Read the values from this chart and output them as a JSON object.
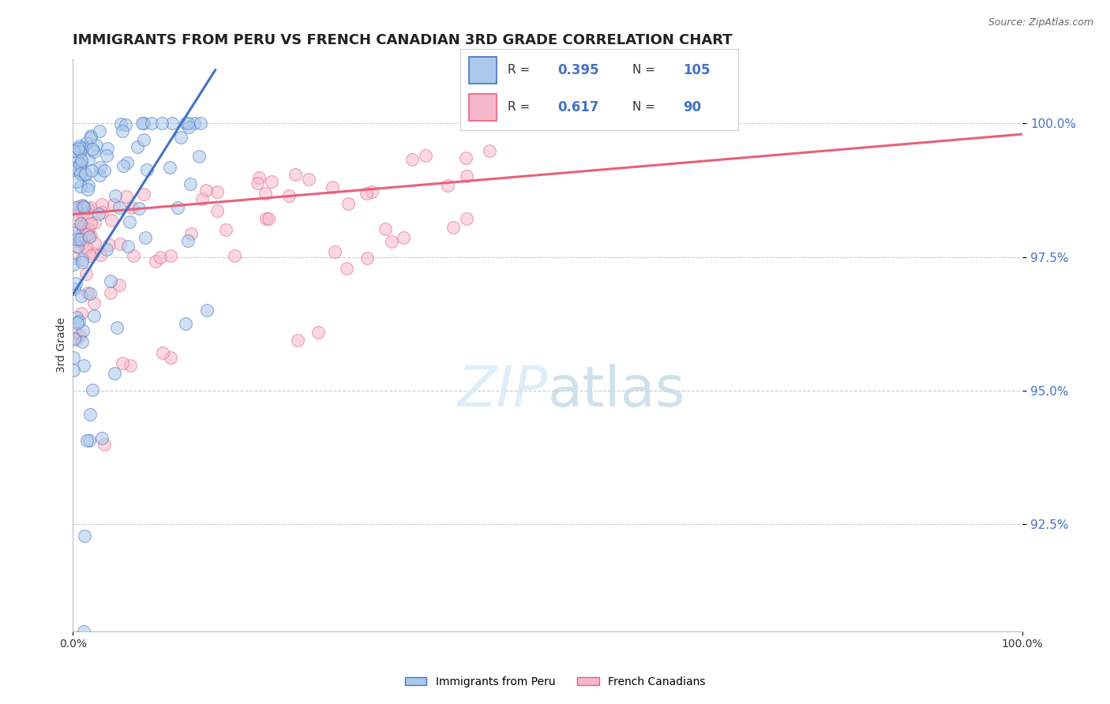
{
  "title": "IMMIGRANTS FROM PERU VS FRENCH CANADIAN 3RD GRADE CORRELATION CHART",
  "source": "Source: ZipAtlas.com",
  "ylabel": "3rd Grade",
  "xlim": [
    0.0,
    100.0
  ],
  "ylim": [
    90.5,
    101.2
  ],
  "yticks": [
    92.5,
    95.0,
    97.5,
    100.0
  ],
  "ytick_labels": [
    "92.5%",
    "95.0%",
    "97.5%",
    "100.0%"
  ],
  "blue_line": {
    "x0": 0.0,
    "y0": 96.8,
    "x1": 15.0,
    "y1": 101.0
  },
  "pink_line": {
    "x0": 0.0,
    "y0": 98.3,
    "x1": 100.0,
    "y1": 99.8
  },
  "blue_color": "#4472C4",
  "pink_color": "#E8607A",
  "blue_scatter_color": "#aac8ea",
  "pink_scatter_color": "#f5b8ca",
  "bg_color": "#ffffff",
  "grid_color": "#cccccc",
  "title_fontsize": 13,
  "legend_R1": "0.395",
  "legend_N1": "105",
  "legend_R2": "0.617",
  "legend_N2": "90",
  "watermark": "ZIPatlas",
  "source_text": "Source: ZipAtlas.com"
}
